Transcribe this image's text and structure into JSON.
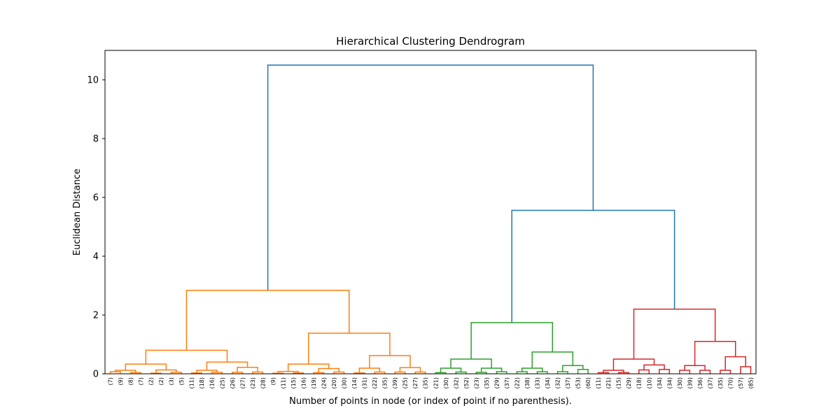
{
  "chart_data": {
    "type": "dendrogram",
    "title": "Hierarchical Clustering Dendrogram",
    "xlabel": "Number of points in node (or index of point if no parenthesis).",
    "ylabel": "Euclidean Distance",
    "ylim": [
      0,
      11
    ],
    "yticks": [
      0,
      2,
      4,
      6,
      8,
      10
    ],
    "colors": {
      "root": "#1f77b4",
      "orange": "#ff7f0e",
      "green": "#2ca02c",
      "red": "#d62728"
    },
    "leaf_labels": [
      "(7)",
      "(9)",
      "(8)",
      "(7)",
      "(2)",
      "(2)",
      "(3)",
      "(5)",
      "(11)",
      "(18)",
      "(16)",
      "(25)",
      "(26)",
      "(27)",
      "(23)",
      "(28)",
      "(9)",
      "(11)",
      "(15)",
      "(16)",
      "(19)",
      "(24)",
      "(20)",
      "(30)",
      "(14)",
      "(31)",
      "(22)",
      "(35)",
      "(39)",
      "(25)",
      "(27)",
      "(35)",
      "(21)",
      "(30)",
      "(32)",
      "(52)",
      "(23)",
      "(35)",
      "(29)",
      "(37)",
      "(22)",
      "(38)",
      "(33)",
      "(34)",
      "(32)",
      "(37)",
      "(53)",
      "(60)",
      "(11)",
      "(21)",
      "(15)",
      "(29)",
      "(18)",
      "(10)",
      "(34)",
      "(34)",
      "(30)",
      "(39)",
      "(36)",
      "(37)",
      "(35)",
      "(70)",
      "(57)",
      "(85)"
    ],
    "merges": [
      {
        "l": 0,
        "r": 1,
        "h": 0.07,
        "c": "orange"
      },
      {
        "l": 2,
        "r": 3,
        "h": 0.04,
        "c": "orange"
      },
      {
        "l": 4,
        "r": 5,
        "h": 0.02,
        "c": "orange"
      },
      {
        "l": 6,
        "r": 7,
        "h": 0.05,
        "c": "orange"
      },
      {
        "l": 8,
        "r": 9,
        "h": 0.03,
        "c": "orange"
      },
      {
        "l": 10,
        "r": 11,
        "h": 0.05,
        "c": "orange"
      },
      {
        "l": 12,
        "r": 13,
        "h": 0.05,
        "c": "orange"
      },
      {
        "l": 14,
        "r": 15,
        "h": 0.06,
        "c": "orange"
      },
      {
        "l": 16,
        "r": 17,
        "h": 0.02,
        "c": "orange"
      },
      {
        "l": 18,
        "r": 19,
        "h": 0.03,
        "c": "orange"
      },
      {
        "l": 20,
        "r": 21,
        "h": 0.04,
        "c": "orange"
      },
      {
        "l": 22,
        "r": 23,
        "h": 0.06,
        "c": "orange"
      },
      {
        "l": 24,
        "r": 25,
        "h": 0.03,
        "c": "orange"
      },
      {
        "l": 26,
        "r": 27,
        "h": 0.06,
        "c": "orange"
      },
      {
        "l": 28,
        "r": 29,
        "h": 0.06,
        "c": "orange"
      },
      {
        "l": 30,
        "r": 31,
        "h": 0.06,
        "c": "orange"
      },
      {
        "l": 32,
        "r": 33,
        "h": 0.04,
        "c": "green"
      },
      {
        "l": 34,
        "r": 35,
        "h": 0.06,
        "c": "green"
      },
      {
        "l": 36,
        "r": 37,
        "h": 0.05,
        "c": "green"
      },
      {
        "l": 38,
        "r": 39,
        "h": 0.07,
        "c": "green"
      },
      {
        "l": 40,
        "r": 41,
        "h": 0.07,
        "c": "green"
      },
      {
        "l": 42,
        "r": 43,
        "h": 0.07,
        "c": "green"
      },
      {
        "l": 44,
        "r": 45,
        "h": 0.07,
        "c": "green"
      },
      {
        "l": 46,
        "r": 47,
        "h": 0.15,
        "c": "green"
      },
      {
        "l": 48,
        "r": 49,
        "h": 0.04,
        "c": "red"
      },
      {
        "l": 50,
        "r": 51,
        "h": 0.04,
        "c": "red"
      },
      {
        "l": 52,
        "r": 53,
        "h": 0.13,
        "c": "red"
      },
      {
        "l": 54,
        "r": 55,
        "h": 0.15,
        "c": "red"
      },
      {
        "l": 56,
        "r": 57,
        "h": 0.12,
        "c": "red"
      },
      {
        "l": 58,
        "r": 59,
        "h": 0.12,
        "c": "red"
      },
      {
        "l": 60,
        "r": 61,
        "h": 0.12,
        "c": "red"
      },
      {
        "l": 62,
        "r": 63,
        "h": 0.24,
        "c": "red"
      },
      {
        "l": 64,
        "r": 65,
        "h": 0.12,
        "c": "orange"
      },
      {
        "l": 66,
        "r": 67,
        "h": 0.13,
        "c": "orange"
      },
      {
        "l": 68,
        "r": 69,
        "h": 0.12,
        "c": "orange"
      },
      {
        "l": 70,
        "r": 71,
        "h": 0.22,
        "c": "orange"
      },
      {
        "l": 72,
        "r": 73,
        "h": 0.08,
        "c": "orange"
      },
      {
        "l": 74,
        "r": 75,
        "h": 0.18,
        "c": "orange"
      },
      {
        "l": 76,
        "r": 77,
        "h": 0.19,
        "c": "orange"
      },
      {
        "l": 78,
        "r": 79,
        "h": 0.21,
        "c": "orange"
      },
      {
        "l": 80,
        "r": 81,
        "h": 0.19,
        "c": "green"
      },
      {
        "l": 82,
        "r": 83,
        "h": 0.19,
        "c": "green"
      },
      {
        "l": 84,
        "r": 85,
        "h": 0.19,
        "c": "green"
      },
      {
        "l": 86,
        "r": 87,
        "h": 0.28,
        "c": "green"
      },
      {
        "l": 88,
        "r": 89,
        "h": 0.12,
        "c": "red"
      },
      {
        "l": 90,
        "r": 91,
        "h": 0.3,
        "c": "red"
      },
      {
        "l": 92,
        "r": 93,
        "h": 0.28,
        "c": "red"
      },
      {
        "l": 94,
        "r": 95,
        "h": 0.58,
        "c": "red"
      },
      {
        "l": 96,
        "r": 97,
        "h": 0.33,
        "c": "orange"
      },
      {
        "l": 98,
        "r": 99,
        "h": 0.4,
        "c": "orange"
      },
      {
        "l": 100,
        "r": 101,
        "h": 0.33,
        "c": "orange"
      },
      {
        "l": 102,
        "r": 103,
        "h": 0.62,
        "c": "orange"
      },
      {
        "l": 104,
        "r": 105,
        "h": 0.5,
        "c": "green"
      },
      {
        "l": 106,
        "r": 107,
        "h": 0.74,
        "c": "green"
      },
      {
        "l": 108,
        "r": 109,
        "h": 0.5,
        "c": "red"
      },
      {
        "l": 110,
        "r": 111,
        "h": 1.1,
        "c": "red"
      },
      {
        "l": 112,
        "r": 113,
        "h": 0.8,
        "c": "orange"
      },
      {
        "l": 114,
        "r": 115,
        "h": 1.38,
        "c": "orange"
      },
      {
        "l": 116,
        "r": 117,
        "h": 1.74,
        "c": "green"
      },
      {
        "l": 118,
        "r": 119,
        "h": 2.2,
        "c": "red"
      },
      {
        "l": 120,
        "r": 121,
        "h": 2.84,
        "c": "orange"
      },
      {
        "l": 122,
        "r": 123,
        "h": 5.56,
        "c": "root"
      },
      {
        "l": 124,
        "r": 125,
        "h": 10.5,
        "c": "root"
      }
    ]
  }
}
